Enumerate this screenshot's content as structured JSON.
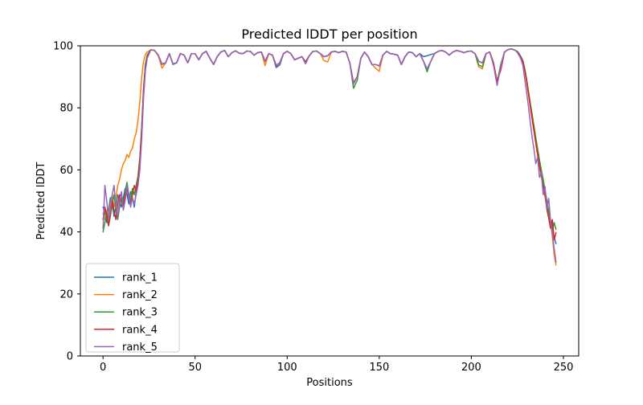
{
  "chart_data": {
    "type": "line",
    "title": "Predicted lDDT per position",
    "xlabel": "Positions",
    "ylabel": "Predicted lDDT",
    "xlim": [
      -12.3,
      258.3
    ],
    "ylim": [
      0,
      100
    ],
    "xticks": [
      0,
      50,
      100,
      150,
      200,
      250
    ],
    "yticks": [
      0,
      20,
      40,
      60,
      80,
      100
    ],
    "grid": false,
    "legend_position": "lower left",
    "x": [
      0,
      1,
      2,
      3,
      4,
      5,
      6,
      7,
      8,
      9,
      10,
      11,
      12,
      13,
      14,
      15,
      16,
      17,
      18,
      19,
      20,
      21,
      22,
      23,
      24,
      26,
      28,
      30,
      32,
      34,
      36,
      38,
      40,
      42,
      44,
      46,
      48,
      50,
      52,
      54,
      56,
      58,
      60,
      62,
      64,
      66,
      68,
      70,
      72,
      74,
      76,
      78,
      80,
      82,
      84,
      86,
      88,
      90,
      92,
      94,
      96,
      98,
      100,
      102,
      104,
      106,
      108,
      110,
      112,
      114,
      116,
      118,
      120,
      122,
      124,
      126,
      128,
      130,
      132,
      134,
      136,
      138,
      140,
      142,
      144,
      146,
      148,
      150,
      152,
      154,
      156,
      158,
      160,
      162,
      164,
      166,
      168,
      170,
      172,
      174,
      176,
      178,
      180,
      182,
      184,
      186,
      188,
      190,
      192,
      194,
      196,
      198,
      200,
      202,
      204,
      206,
      208,
      210,
      212,
      214,
      216,
      218,
      220,
      222,
      224,
      225,
      226,
      227,
      228,
      229,
      230,
      231,
      232,
      233,
      234,
      235,
      236,
      237,
      238,
      239,
      240,
      241,
      242,
      243,
      244,
      245,
      246
    ],
    "series": [
      {
        "name": "rank_1",
        "color": "#1f77b4",
        "values": [
          48,
          46,
          43,
          47,
          51,
          49,
          45,
          48,
          52,
          50,
          48,
          51,
          54,
          52,
          49,
          53,
          51,
          48,
          53,
          57,
          62,
          72,
          85,
          94,
          97,
          98.7,
          98.5,
          97,
          94,
          94.5,
          97.5,
          94,
          94.5,
          97.5,
          97,
          94.5,
          97.5,
          97.5,
          95.5,
          97.5,
          98.2,
          96,
          94,
          96.5,
          98,
          98.5,
          96.5,
          97.8,
          98.4,
          97.6,
          97.5,
          98.3,
          98.2,
          97,
          97.8,
          98,
          95,
          97.5,
          97,
          93,
          93.8,
          97.5,
          98.2,
          97.5,
          95.5,
          96,
          96.5,
          94.8,
          96.8,
          98.2,
          98.3,
          97.5,
          96.5,
          96.8,
          98,
          98.2,
          97.8,
          98.2,
          98,
          94.5,
          88,
          90,
          96,
          98,
          96.5,
          94,
          94,
          93.5,
          97,
          98.2,
          97.5,
          97.3,
          97,
          94,
          96.5,
          98,
          97.8,
          96.5,
          97.5,
          96.5,
          96.8,
          97.2,
          97.5,
          98.2,
          98.5,
          98,
          97,
          98,
          98.5,
          98.2,
          97.8,
          98.2,
          98.3,
          97.5,
          95,
          94.5,
          97.5,
          98,
          94.5,
          88.3,
          94,
          98,
          98.8,
          99,
          98.5,
          98.2,
          97.4,
          96.4,
          95.2,
          92.4,
          89,
          85,
          81,
          77.5,
          73.5,
          69.5,
          66,
          62.5,
          59,
          54.5,
          52.5,
          48.5,
          47.2,
          43.8,
          41.8,
          38.2,
          36.2
        ]
      },
      {
        "name": "rank_2",
        "color": "#ff7f0e",
        "values": [
          46,
          44,
          47,
          45,
          49,
          52,
          48,
          51,
          55,
          57,
          60,
          62,
          63,
          65,
          64,
          66,
          67,
          70,
          72,
          76,
          82,
          90,
          95,
          97.2,
          98,
          98.7,
          98.5,
          96.8,
          92.8,
          94.5,
          97.5,
          94,
          94.5,
          97.5,
          97,
          94.5,
          97.5,
          97.5,
          95.5,
          97.5,
          98.2,
          96,
          94,
          96.5,
          98,
          98.5,
          96.5,
          97.8,
          98.4,
          97.6,
          97.5,
          98.3,
          98.2,
          97,
          97.8,
          98,
          93.6,
          97.5,
          97,
          93.5,
          94.5,
          97.5,
          98.2,
          97.5,
          95.5,
          96,
          96.5,
          94.8,
          96.8,
          98.2,
          98.3,
          97.5,
          95.2,
          94.8,
          98,
          98.2,
          97.8,
          98.2,
          98,
          94.5,
          88.2,
          90,
          96,
          98,
          96.5,
          94,
          92.8,
          91.8,
          97,
          98.2,
          97.5,
          97.3,
          97,
          94,
          96.5,
          98,
          97.8,
          96.5,
          97.5,
          95,
          92.5,
          95,
          97.5,
          98.2,
          98.5,
          98,
          97,
          98,
          98.5,
          98.2,
          97.8,
          98.2,
          98.3,
          97.5,
          93.2,
          92.6,
          97.5,
          98,
          94.5,
          88,
          94,
          98,
          98.8,
          99,
          98.5,
          98,
          97.2,
          96,
          94.8,
          92,
          88.4,
          84.2,
          80.2,
          76.2,
          72.4,
          68.4,
          64.6,
          61,
          57.6,
          54.4,
          51.4,
          48.6,
          46,
          43.4,
          38.5,
          32.5,
          29.3
        ]
      },
      {
        "name": "rank_3",
        "color": "#2ca02c",
        "values": [
          40,
          43,
          46,
          42,
          45,
          49,
          52,
          47,
          44,
          48,
          51,
          49,
          53,
          56,
          52,
          50,
          54,
          52,
          55,
          58,
          64,
          74,
          86,
          94,
          97,
          98.7,
          98.5,
          97,
          94.2,
          94.5,
          97.5,
          94.2,
          94.5,
          97.5,
          97,
          94.5,
          97.5,
          97.5,
          95.5,
          97.5,
          98.2,
          96,
          94,
          96.5,
          98,
          98.5,
          96.5,
          97.8,
          98.4,
          97.6,
          97.5,
          98.3,
          98.2,
          97,
          97.8,
          98,
          95,
          97.5,
          97,
          93.5,
          94.5,
          97.5,
          98.2,
          97.5,
          95.5,
          96,
          96.5,
          94.8,
          96.8,
          98.2,
          98.3,
          97.5,
          96.5,
          96.8,
          98,
          98.2,
          97.8,
          98.2,
          98,
          94.5,
          86.3,
          88.8,
          96,
          98,
          96.5,
          94,
          94,
          93.5,
          97,
          98.2,
          97.5,
          97.3,
          97,
          94,
          96.5,
          98,
          97.8,
          96.5,
          97.5,
          95,
          91.6,
          95,
          97.5,
          98.2,
          98.5,
          98,
          97,
          98,
          98.5,
          98.2,
          97.8,
          98.2,
          98.3,
          97.5,
          93.8,
          93.3,
          97.5,
          98,
          94.5,
          88,
          94,
          98,
          98.8,
          99,
          98.5,
          98.1,
          97.3,
          96.2,
          95,
          92.6,
          89.2,
          85.4,
          81.6,
          78,
          74.2,
          70.4,
          66.8,
          63.2,
          60,
          57,
          53.4,
          50.2,
          46.4,
          43.2,
          40.3,
          43,
          40.8
        ]
      },
      {
        "name": "rank_4",
        "color": "#d62728",
        "values": [
          44,
          48,
          45,
          42,
          46,
          50,
          47,
          44,
          49,
          52,
          50,
          48,
          52,
          54,
          51,
          49,
          52,
          55,
          53,
          57,
          63,
          73,
          86,
          93,
          96.5,
          98.7,
          98.5,
          97,
          94,
          94.5,
          97.5,
          94,
          94.5,
          97.5,
          97,
          94.5,
          97.5,
          97.5,
          95.5,
          97.5,
          98.2,
          96,
          94,
          96.5,
          98,
          98.5,
          96.5,
          97.8,
          98.4,
          97.6,
          97.5,
          98.3,
          98.2,
          97,
          97.8,
          98,
          95,
          97.5,
          97,
          93.5,
          94.5,
          97.5,
          98.2,
          97.5,
          95.5,
          96,
          96.5,
          94.8,
          96.8,
          98.2,
          98.3,
          97.5,
          96.5,
          96.8,
          98,
          98.2,
          97.8,
          98.2,
          98,
          94.5,
          88,
          90,
          96,
          98,
          96.5,
          94,
          94,
          93.5,
          97,
          98.2,
          97.5,
          97.3,
          97,
          94,
          96.5,
          98,
          97.8,
          96.5,
          97.5,
          95,
          92.5,
          95,
          97.5,
          98.2,
          98.5,
          98,
          97,
          98,
          98.5,
          98.2,
          97.8,
          98.2,
          98.3,
          97.5,
          95,
          94.5,
          97.5,
          98,
          94.5,
          88.6,
          92.2,
          98,
          98.8,
          99,
          98.5,
          98,
          97.2,
          96.1,
          94.9,
          92.2,
          88.8,
          84.8,
          80.8,
          76.8,
          73,
          69,
          65.2,
          61.6,
          58.2,
          55,
          51.8,
          47.2,
          44.4,
          41.2,
          44,
          37.5,
          39.8
        ]
      },
      {
        "name": "rank_5",
        "color": "#9467bd",
        "values": [
          41,
          55,
          50,
          44,
          47,
          52,
          55,
          48,
          45,
          50,
          53,
          47,
          50,
          55,
          52,
          48,
          51,
          49,
          52,
          55,
          60,
          70,
          83,
          92,
          96,
          98.7,
          98.5,
          97,
          94,
          94.5,
          97.5,
          94,
          94.5,
          97.5,
          97,
          94.5,
          97.5,
          97.5,
          95.5,
          97.5,
          98.2,
          96,
          94,
          96.5,
          98,
          98.5,
          96.5,
          97.8,
          98.4,
          97.6,
          97.5,
          98.3,
          98.2,
          97,
          97.8,
          98,
          95,
          97.5,
          97,
          93.8,
          94.5,
          97.5,
          98.2,
          97.5,
          95.5,
          96,
          96.5,
          94.2,
          96.8,
          98.2,
          98.3,
          97.5,
          96.5,
          96.8,
          98,
          98.2,
          97.8,
          98.2,
          98,
          94.5,
          87.6,
          90,
          96,
          98,
          96.5,
          94,
          94,
          93.5,
          97,
          98.2,
          97.5,
          97.3,
          97,
          94,
          96.5,
          98,
          97.8,
          96.5,
          97.5,
          95,
          92.5,
          95,
          97.5,
          98.2,
          98.5,
          98,
          97,
          98,
          98.5,
          98.2,
          97.8,
          98.2,
          98.3,
          97.5,
          95,
          94.5,
          97.5,
          98,
          93.8,
          87.2,
          93.4,
          98,
          98.8,
          99,
          98.5,
          97.8,
          96.8,
          95.6,
          93.6,
          89.2,
          85,
          80.4,
          75.4,
          70.6,
          66.8,
          62,
          64,
          57.6,
          59.4,
          52,
          54.6,
          47.6,
          50.8,
          43.6,
          39.8,
          34.6,
          30.2
        ]
      }
    ]
  }
}
